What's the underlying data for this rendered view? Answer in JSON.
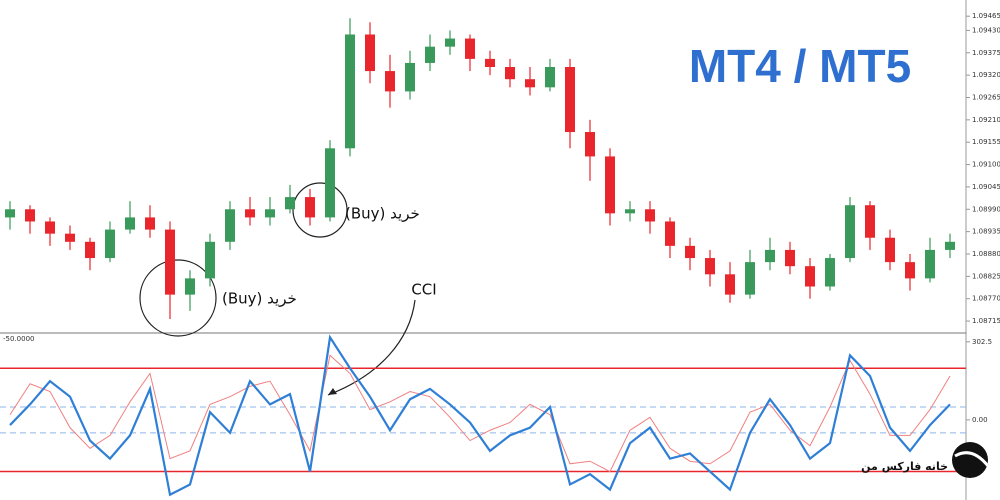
{
  "chart_data": [
    {
      "type": "candlestick",
      "title": "MT4 / MT5",
      "annotations": [
        "(Buy) خرید",
        "(Buy) خرید"
      ],
      "open": [
        1.0897,
        1.0899,
        1.0896,
        1.0893,
        1.0891,
        1.0887,
        1.0894,
        1.0897,
        1.0894,
        1.0878,
        1.0882,
        1.0891,
        1.0899,
        1.0897,
        1.0899,
        1.0902,
        1.0897,
        1.0914,
        1.0942,
        1.0933,
        1.0928,
        1.0935,
        1.0939,
        1.0941,
        1.0936,
        1.0934,
        1.0931,
        1.0929,
        1.0934,
        1.0918,
        1.0912,
        1.0898,
        1.0899,
        1.0896,
        1.089,
        1.0887,
        1.0883,
        1.0878,
        1.0886,
        1.0889,
        1.0885,
        1.088,
        1.0887,
        1.09,
        1.0892,
        1.0886,
        1.0882,
        1.0889
      ],
      "close": [
        1.0899,
        1.0896,
        1.0893,
        1.0891,
        1.0887,
        1.0894,
        1.0897,
        1.0894,
        1.0878,
        1.0882,
        1.0891,
        1.0899,
        1.0897,
        1.0899,
        1.0902,
        1.0897,
        1.0914,
        1.0942,
        1.0933,
        1.0928,
        1.0935,
        1.0939,
        1.0941,
        1.0936,
        1.0934,
        1.0931,
        1.0929,
        1.0934,
        1.0918,
        1.0912,
        1.0898,
        1.0899,
        1.0896,
        1.089,
        1.0887,
        1.0883,
        1.0878,
        1.0886,
        1.0889,
        1.0885,
        1.088,
        1.0887,
        1.09,
        1.0892,
        1.0886,
        1.0882,
        1.0889,
        1.0891
      ],
      "high": [
        1.0901,
        1.09,
        1.0897,
        1.0895,
        1.0892,
        1.0896,
        1.0901,
        1.09,
        1.0896,
        1.0884,
        1.0893,
        1.0901,
        1.0902,
        1.0902,
        1.0905,
        1.0904,
        1.0916,
        1.0946,
        1.0945,
        1.0937,
        1.0938,
        1.0942,
        1.0943,
        1.0942,
        1.0938,
        1.0936,
        1.0934,
        1.0936,
        1.0936,
        1.0921,
        1.0914,
        1.0901,
        1.0901,
        1.0897,
        1.0892,
        1.0889,
        1.0886,
        1.0889,
        1.0892,
        1.0891,
        1.0887,
        1.0888,
        1.0902,
        1.0901,
        1.0894,
        1.0888,
        1.0892,
        1.0893
      ],
      "low": [
        1.0894,
        1.0893,
        1.089,
        1.0889,
        1.0884,
        1.0886,
        1.0893,
        1.0892,
        1.0872,
        1.0874,
        1.088,
        1.0889,
        1.0895,
        1.0895,
        1.0898,
        1.0895,
        1.0896,
        1.0912,
        1.093,
        1.0924,
        1.0926,
        1.0933,
        1.0937,
        1.0933,
        1.0932,
        1.0929,
        1.0927,
        1.0928,
        1.0914,
        1.0906,
        1.0895,
        1.0896,
        1.0893,
        1.0887,
        1.0884,
        1.088,
        1.0876,
        1.0877,
        1.0884,
        1.0883,
        1.0877,
        1.0879,
        1.0886,
        1.0889,
        1.0884,
        1.0879,
        1.0881,
        1.0887
      ],
      "up_color": "#3a9a5b",
      "down_color": "#e8262b",
      "ylim": [
        1.08693,
        1.09495
      ],
      "yticks": [
        1.09465,
        {
          "value": 1.0943,
          "label": "1.09430"
        },
        1.09375,
        {
          "value": 1.0932,
          "label": "1.09320"
        },
        1.09265,
        {
          "value": 1.0921,
          "label": "1.09210"
        },
        1.09155,
        {
          "value": 1.091,
          "label": "1.09100"
        },
        1.09045,
        {
          "value": 1.0899,
          "label": "1.08990"
        },
        1.08935,
        {
          "value": 1.0888,
          "label": "1.08880"
        },
        1.08825,
        {
          "value": 1.0877,
          "label": "1.08770"
        },
        1.08715
      ]
    },
    {
      "type": "line",
      "title": "CCI",
      "subtitle": "-50.0000",
      "footer": "خانه فارکس من",
      "series": [
        {
          "name": "CCI",
          "color": "#2f7fd6",
          "values": [
            -20,
            60,
            150,
            90,
            -80,
            -150,
            -60,
            120,
            -290,
            -250,
            30,
            -50,
            150,
            60,
            100,
            -200,
            320,
            200,
            90,
            -40,
            80,
            120,
            60,
            -10,
            -120,
            -60,
            -30,
            50,
            -250,
            -210,
            -270,
            -90,
            -30,
            -150,
            -130,
            -200,
            -270,
            -50,
            80,
            -20,
            -150,
            -90,
            250,
            170,
            -30,
            -120,
            -20,
            60
          ]
        },
        {
          "color": "#f08080",
          "values": [
            20,
            140,
            110,
            -30,
            -110,
            -60,
            70,
            180,
            -150,
            -120,
            60,
            90,
            130,
            150,
            20,
            -120,
            250,
            180,
            40,
            70,
            110,
            90,
            10,
            -80,
            -40,
            -10,
            60,
            20,
            -170,
            -160,
            -200,
            -40,
            10,
            -110,
            -160,
            -170,
            -120,
            30,
            60,
            -40,
            -100,
            50,
            230,
            100,
            -60,
            -60,
            40,
            170
          ]
        }
      ],
      "levels": [
        200,
        -200
      ],
      "level_color": "#e8262b",
      "dashed_levels": [
        50,
        -50
      ],
      "dashed_color": "#8fb4e8",
      "ylim": [
        -302.5,
        325
      ],
      "yticks": [
        302.5,
        {
          "value": 0,
          "label": "0.00"
        }
      ]
    }
  ]
}
